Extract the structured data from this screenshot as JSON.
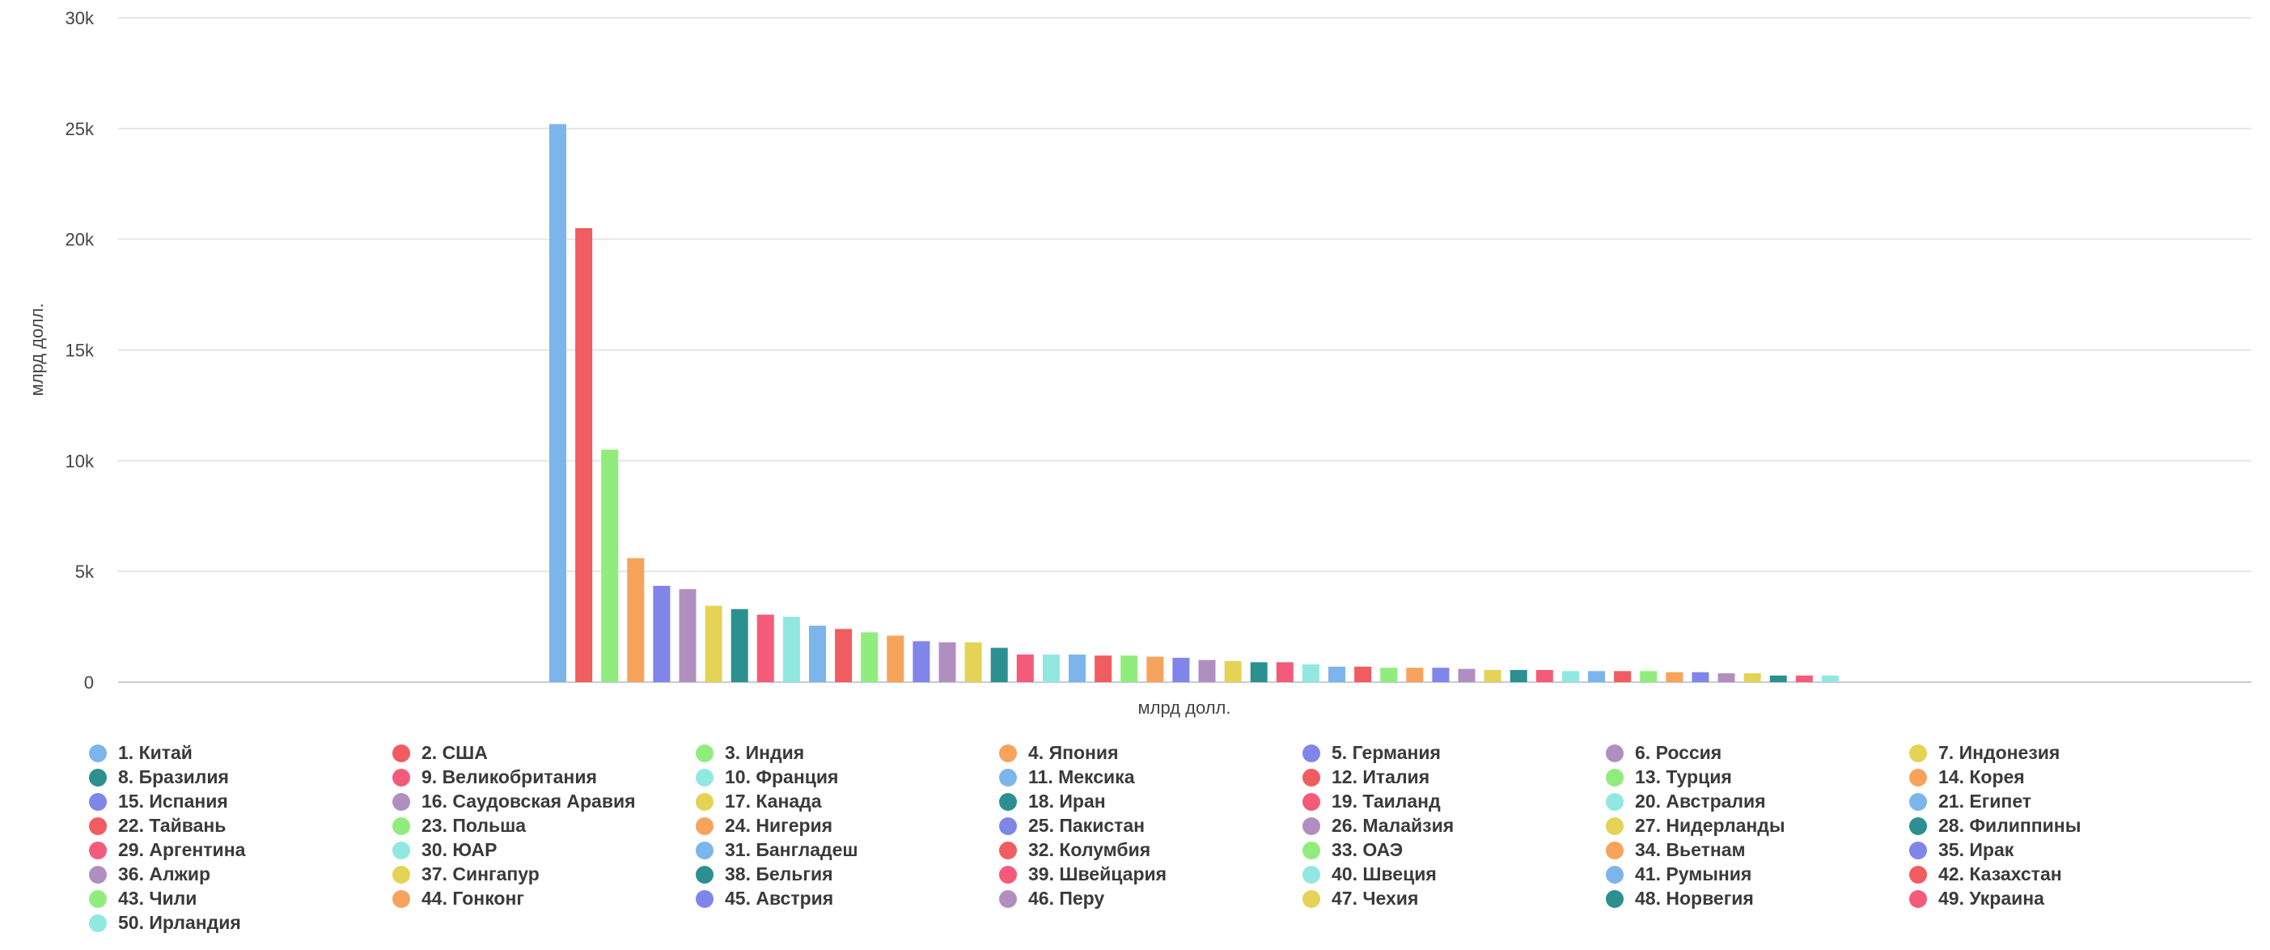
{
  "chart_data": {
    "type": "bar",
    "xlabel": "млрд долл.",
    "ylabel": "млрд долл.",
    "ylim": [
      0,
      30000
    ],
    "yticks": [
      0,
      5000,
      10000,
      15000,
      20000,
      25000,
      30000
    ],
    "ytick_labels": [
      "0",
      "5k",
      "10k",
      "15k",
      "20k",
      "25k",
      "30k"
    ],
    "grid": "horizontal",
    "legend_position": "bottom",
    "categories": [
      "1. Китай",
      "2. США",
      "3. Индия",
      "4. Япония",
      "5. Германия",
      "6. Россия",
      "7. Индонезия",
      "8. Бразилия",
      "9. Великобритания",
      "10. Франция",
      "11. Мексика",
      "12. Италия",
      "13. Турция",
      "14. Корея",
      "15. Испания",
      "16. Саудовская Аравия",
      "17. Канада",
      "18. Иран",
      "19. Таиланд",
      "20. Австралия",
      "21. Египет",
      "22. Тайвань",
      "23. Польша",
      "24. Нигерия",
      "25. Пакистан",
      "26. Малайзия",
      "27. Нидерланды",
      "28. Филиппины",
      "29. Аргентина",
      "30. ЮАР",
      "31. Бангладеш",
      "32. Колумбия",
      "33. ОАЭ",
      "34. Вьетнам",
      "35. Ирак",
      "36. Алжир",
      "37. Сингапур",
      "38. Бельгия",
      "39. Швейцария",
      "40. Швеция",
      "41. Румыния",
      "42. Казахстан",
      "43. Чили",
      "44. Гонконг",
      "45. Австрия",
      "46. Перу",
      "47. Чехия",
      "48. Норвегия",
      "49. Украина",
      "50. Ирландия"
    ],
    "values": [
      25200,
      20500,
      10500,
      5600,
      4350,
      4200,
      3450,
      3300,
      3050,
      2950,
      2550,
      2400,
      2250,
      2100,
      1850,
      1800,
      1800,
      1550,
      1250,
      1250,
      1250,
      1200,
      1200,
      1150,
      1100,
      1000,
      950,
      900,
      900,
      800,
      700,
      700,
      650,
      650,
      650,
      600,
      550,
      550,
      550,
      500,
      500,
      500,
      500,
      450,
      450,
      400,
      400,
      300,
      300,
      300
    ],
    "colors": [
      "#7cb5ec",
      "#f15c60",
      "#90ed7d",
      "#f7a35c",
      "#8085e9",
      "#b08fc0",
      "#e4d354",
      "#2b908f",
      "#f45b7a",
      "#91e8e1",
      "#7cb5ec",
      "#f15c60",
      "#90ed7d",
      "#f7a35c",
      "#8085e9",
      "#b08fc0",
      "#e4d354",
      "#2b908f",
      "#f45b7a",
      "#91e8e1",
      "#7cb5ec",
      "#f15c60",
      "#90ed7d",
      "#f7a35c",
      "#8085e9",
      "#b08fc0",
      "#e4d354",
      "#2b908f",
      "#f45b7a",
      "#91e8e1",
      "#7cb5ec",
      "#f15c60",
      "#90ed7d",
      "#f7a35c",
      "#8085e9",
      "#b08fc0",
      "#e4d354",
      "#2b908f",
      "#f45b7a",
      "#91e8e1",
      "#7cb5ec",
      "#f15c60",
      "#90ed7d",
      "#f7a35c",
      "#8085e9",
      "#b08fc0",
      "#e4d354",
      "#2b908f",
      "#f45b7a",
      "#91e8e1"
    ]
  }
}
